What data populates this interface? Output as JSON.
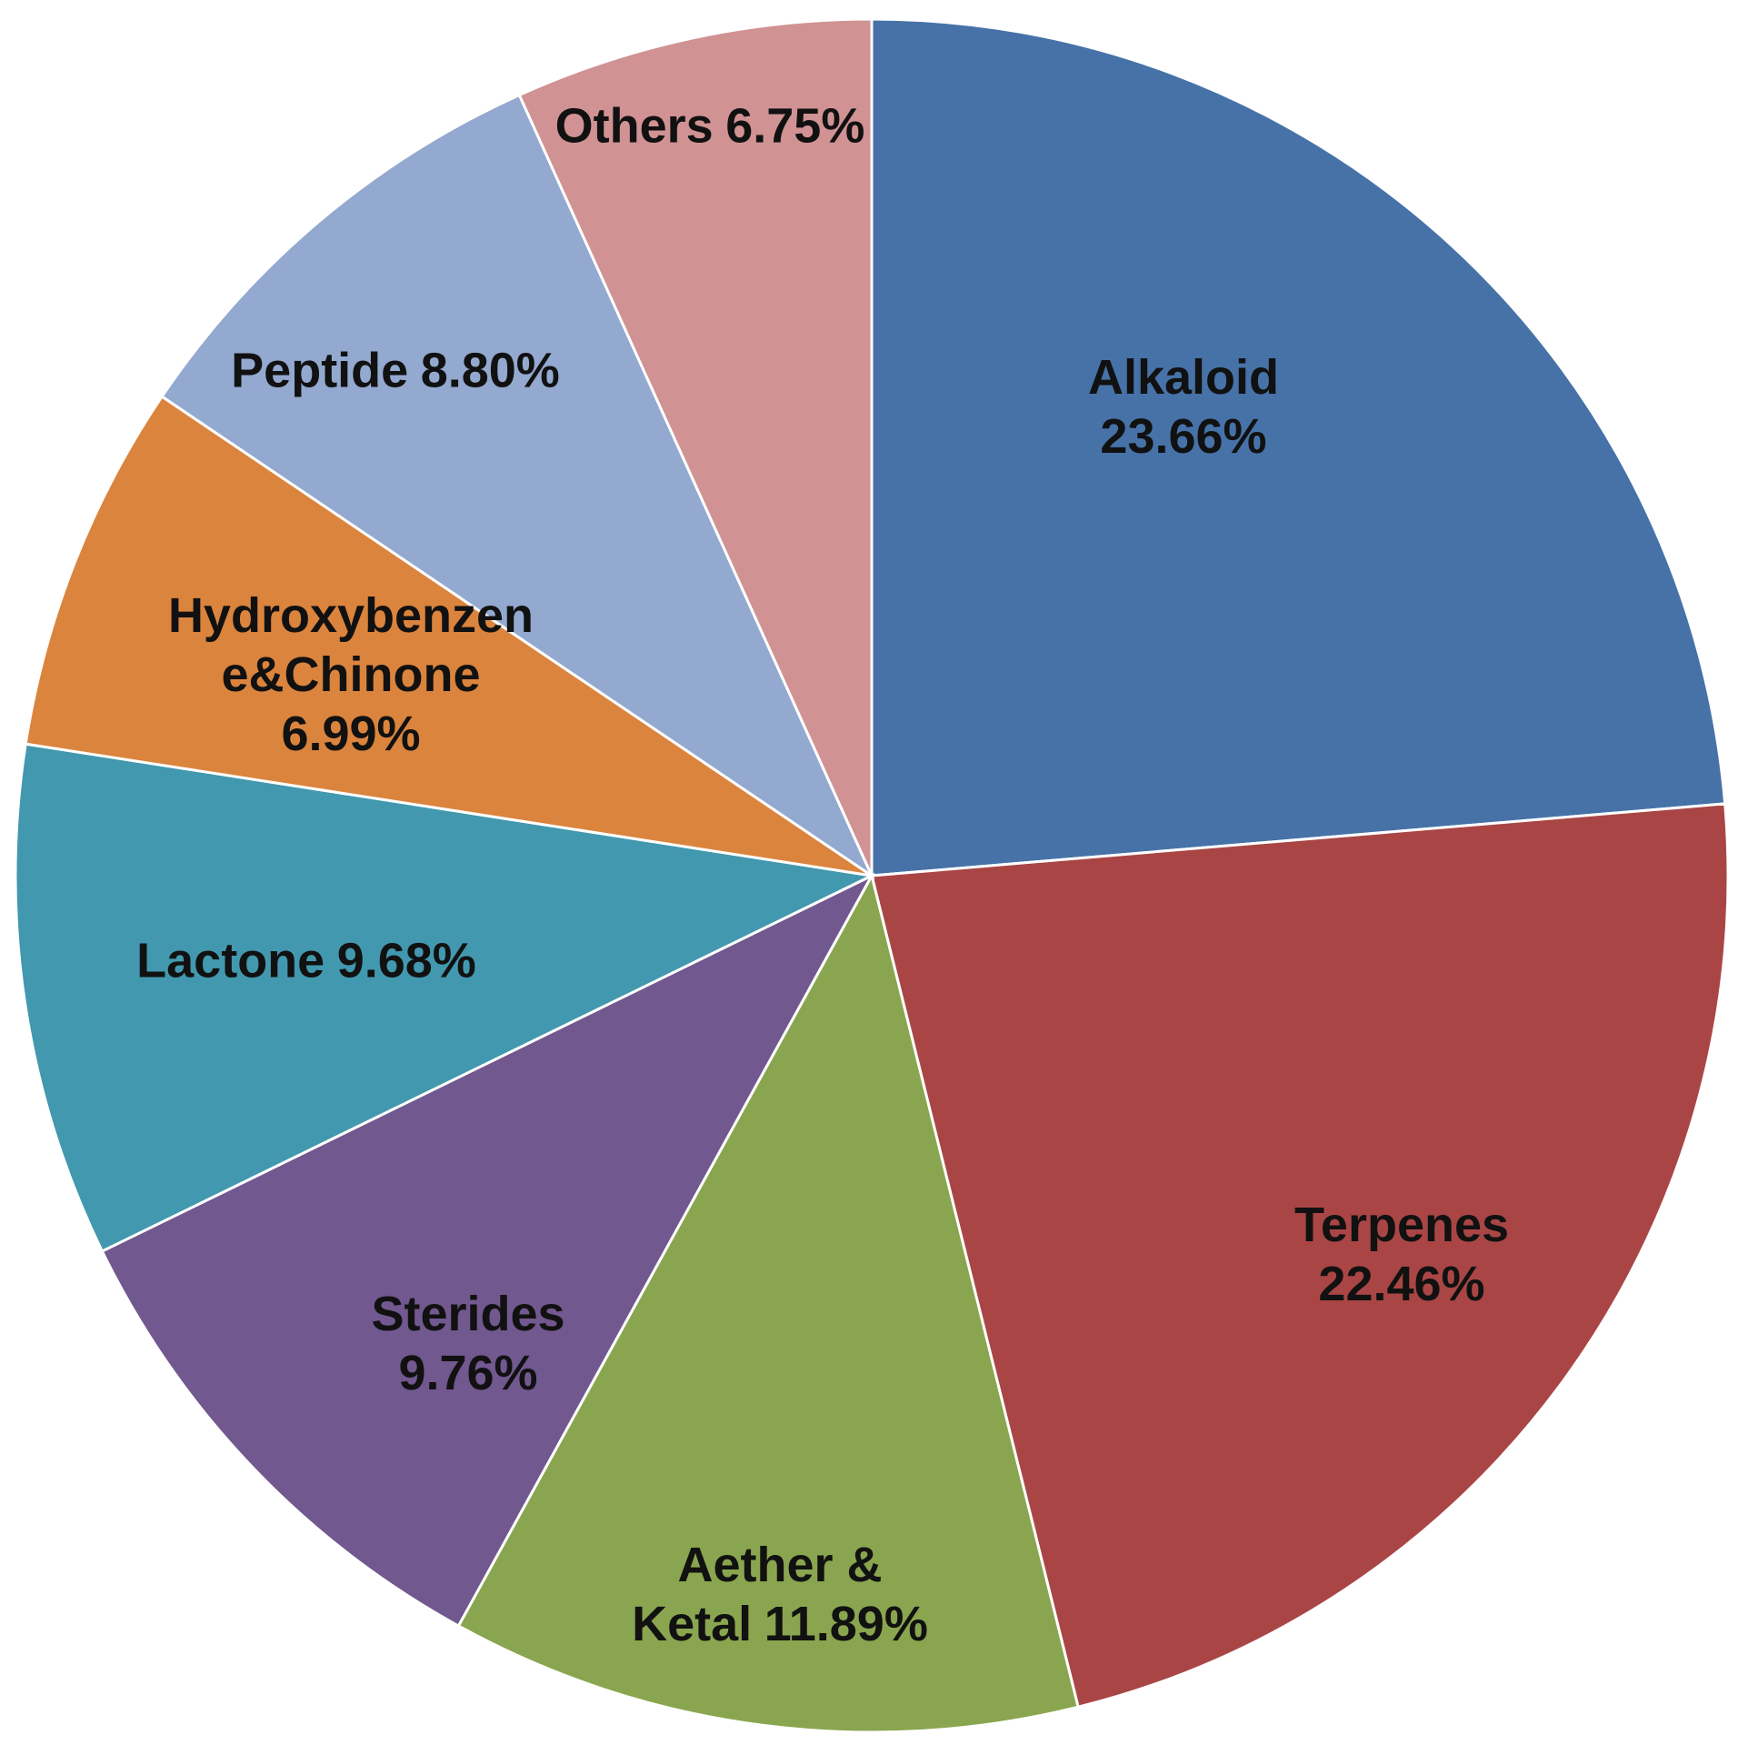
{
  "chart_data": {
    "type": "pie",
    "categories": [
      "Alkaloid",
      "Terpenes",
      "Aether & Ketal",
      "Sterides",
      "Lactone",
      "Hydroxybenzene&Chinone",
      "Peptide",
      "Others"
    ],
    "values": [
      23.66,
      22.46,
      11.89,
      9.76,
      9.68,
      6.99,
      8.8,
      6.75
    ],
    "value_labels": [
      "23.66%",
      "22.46%",
      "11.89%",
      "9.76%",
      "9.68%",
      "6.99%",
      "8.80%",
      "6.75%"
    ],
    "colors": [
      "#4672a8",
      "#a94645",
      "#8aa54f",
      "#71588f",
      "#4298ae",
      "#db843d",
      "#93a9cf",
      "#d09293"
    ]
  }
}
